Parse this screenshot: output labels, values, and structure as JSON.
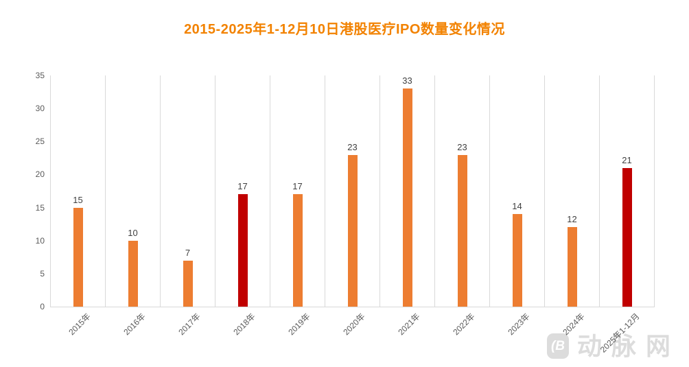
{
  "chart_data": {
    "type": "bar",
    "title": "2015-2025年1-12月10日港股医疗IPO数量变化情况",
    "categories": [
      "2015年",
      "2016年",
      "2017年",
      "2018年",
      "2019年",
      "2020年",
      "2021年",
      "2022年",
      "2023年",
      "2024年",
      "2025年1-12月"
    ],
    "values": [
      15,
      10,
      7,
      17,
      17,
      23,
      33,
      23,
      14,
      12,
      21
    ],
    "bar_colors": [
      "#ED7D31",
      "#ED7D31",
      "#ED7D31",
      "#C00000",
      "#ED7D31",
      "#ED7D31",
      "#ED7D31",
      "#ED7D31",
      "#ED7D31",
      "#ED7D31",
      "#C00000"
    ],
    "xlabel": "",
    "ylabel": "",
    "ylim": [
      0,
      35
    ],
    "yticks": [
      0,
      5,
      10,
      15,
      20,
      25,
      30,
      35
    ],
    "grid": "vertical-category-gridlines",
    "legend": "none",
    "data_labels": true
  },
  "colors": {
    "title": "#F28200",
    "bar_orange": "#ED7D31",
    "bar_highlight_red": "#C00000",
    "gridline": "#D9D9D9",
    "axis_text": "#595959",
    "value_label": "#404040",
    "watermark": "#DCDCDC"
  },
  "watermark": {
    "logo_glyph": "(B",
    "text": "动脉网"
  }
}
